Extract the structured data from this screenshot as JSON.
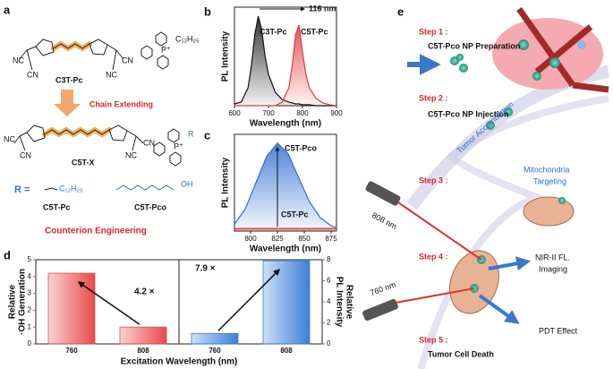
{
  "panel_labels": [
    "a",
    "b",
    "c",
    "d",
    "e"
  ],
  "panel_a": {
    "top_name": "C3T-Pc",
    "arrow_text": "Chain Extending",
    "mid_name": "C5T-X",
    "r_prefix": "R =",
    "r_options": [
      "C5T-Pc",
      "C5T-Pco"
    ],
    "bottom_text": "Counterion Engineering",
    "atoms": [
      "NC",
      "CN",
      "NC",
      "CN",
      "NC",
      "CN",
      "NC",
      "CN",
      "P⁺",
      "C₁₂H₂₅",
      "P⁺",
      "R",
      "C₁₂H₂₅",
      "OH"
    ]
  },
  "panel_e": {
    "steps": [
      {
        "label": "Step 1 :",
        "text": "C5T-Pco NP Preparation"
      },
      {
        "label": "Step 2 :",
        "text": "C5T-Pco NP Injection"
      },
      {
        "label": "Step 3 :"
      },
      {
        "label": "Step 4 :"
      },
      {
        "label": "Step 5 :",
        "text": "Tumor Cell Death"
      }
    ],
    "tumor_accumulation": "Tumor Accumulation",
    "mito_targeting": [
      "Mitochondria",
      "Targeting"
    ],
    "lasers": [
      "808 nm",
      "760 nm"
    ],
    "imaging": [
      "NIR-II FL.",
      "Imaging"
    ],
    "pdt": "PDT Effect"
  },
  "chart_data": [
    {
      "type": "line",
      "xlabel": "Wavelength (nm)",
      "ylabel": "PL Intensity",
      "annotation": "116 nm",
      "xlim": [
        600,
        900
      ],
      "xticks": [
        600,
        700,
        800,
        900
      ],
      "ylim": [
        0,
        1.1
      ],
      "fill": true,
      "x": [
        600,
        620,
        640,
        650,
        660,
        670,
        680,
        690,
        700,
        720,
        740,
        760,
        770,
        780,
        790,
        800,
        810,
        820,
        840,
        860,
        880,
        900
      ],
      "series": [
        {
          "name": "C3T-Pc",
          "color": "#111111",
          "values": [
            0.02,
            0.04,
            0.2,
            0.45,
            0.8,
            1.0,
            0.85,
            0.55,
            0.35,
            0.15,
            0.07,
            0.04,
            0.03,
            0.02,
            0.02,
            0.01,
            0.01,
            0.01,
            0,
            0,
            0,
            0
          ]
        },
        {
          "name": "C5T-Pc",
          "color": "#e03a3a",
          "values": [
            0,
            0,
            0,
            0,
            0,
            0,
            0,
            0,
            0,
            0,
            0.04,
            0.2,
            0.45,
            0.8,
            0.9,
            0.6,
            0.35,
            0.2,
            0.08,
            0.03,
            0.01,
            0
          ]
        }
      ]
    },
    {
      "type": "line",
      "xlabel": "Wavelength (nm)",
      "ylabel": "PL Intensity",
      "xlim": [
        785,
        880
      ],
      "xticks": [
        800,
        825,
        850,
        875
      ],
      "ylim": [
        0,
        1.1
      ],
      "fill": true,
      "x": [
        785,
        795,
        805,
        815,
        825,
        835,
        845,
        855,
        865,
        875,
        880
      ],
      "series": [
        {
          "name": "C5T-Pco",
          "color": "#2f6fd0",
          "values": [
            0.08,
            0.25,
            0.55,
            0.85,
            1.0,
            0.88,
            0.6,
            0.33,
            0.15,
            0.06,
            0.04
          ]
        },
        {
          "name": "C5T-Pc",
          "color": "#e03a3a",
          "values": [
            0.03,
            0.03,
            0.03,
            0.03,
            0.03,
            0.03,
            0.03,
            0.03,
            0.03,
            0.03,
            0.03
          ]
        }
      ]
    },
    {
      "type": "bar",
      "xlabel": "Excitation Wavelength (nm)",
      "ylabel": [
        "Relative",
        "·OH Generation"
      ],
      "y2label": [
        "Relative",
        "PL Intensity"
      ],
      "categories": [
        "760",
        "808",
        "760",
        "808"
      ],
      "ylim": [
        0,
        5
      ],
      "yticks": [
        0,
        1,
        2,
        3,
        4,
        5
      ],
      "y2lim": [
        0,
        8
      ],
      "y2ticks": [
        0,
        2,
        4,
        6,
        8
      ],
      "annotations": [
        "4.2 ×",
        "7.9 ×"
      ],
      "series": [
        {
          "color": "#e84a4a",
          "values": [
            4.2,
            1,
            null,
            null
          ]
        },
        {
          "color": "#3b7fd9",
          "axis": "y2",
          "values": [
            null,
            null,
            1,
            7.9
          ]
        }
      ]
    }
  ]
}
